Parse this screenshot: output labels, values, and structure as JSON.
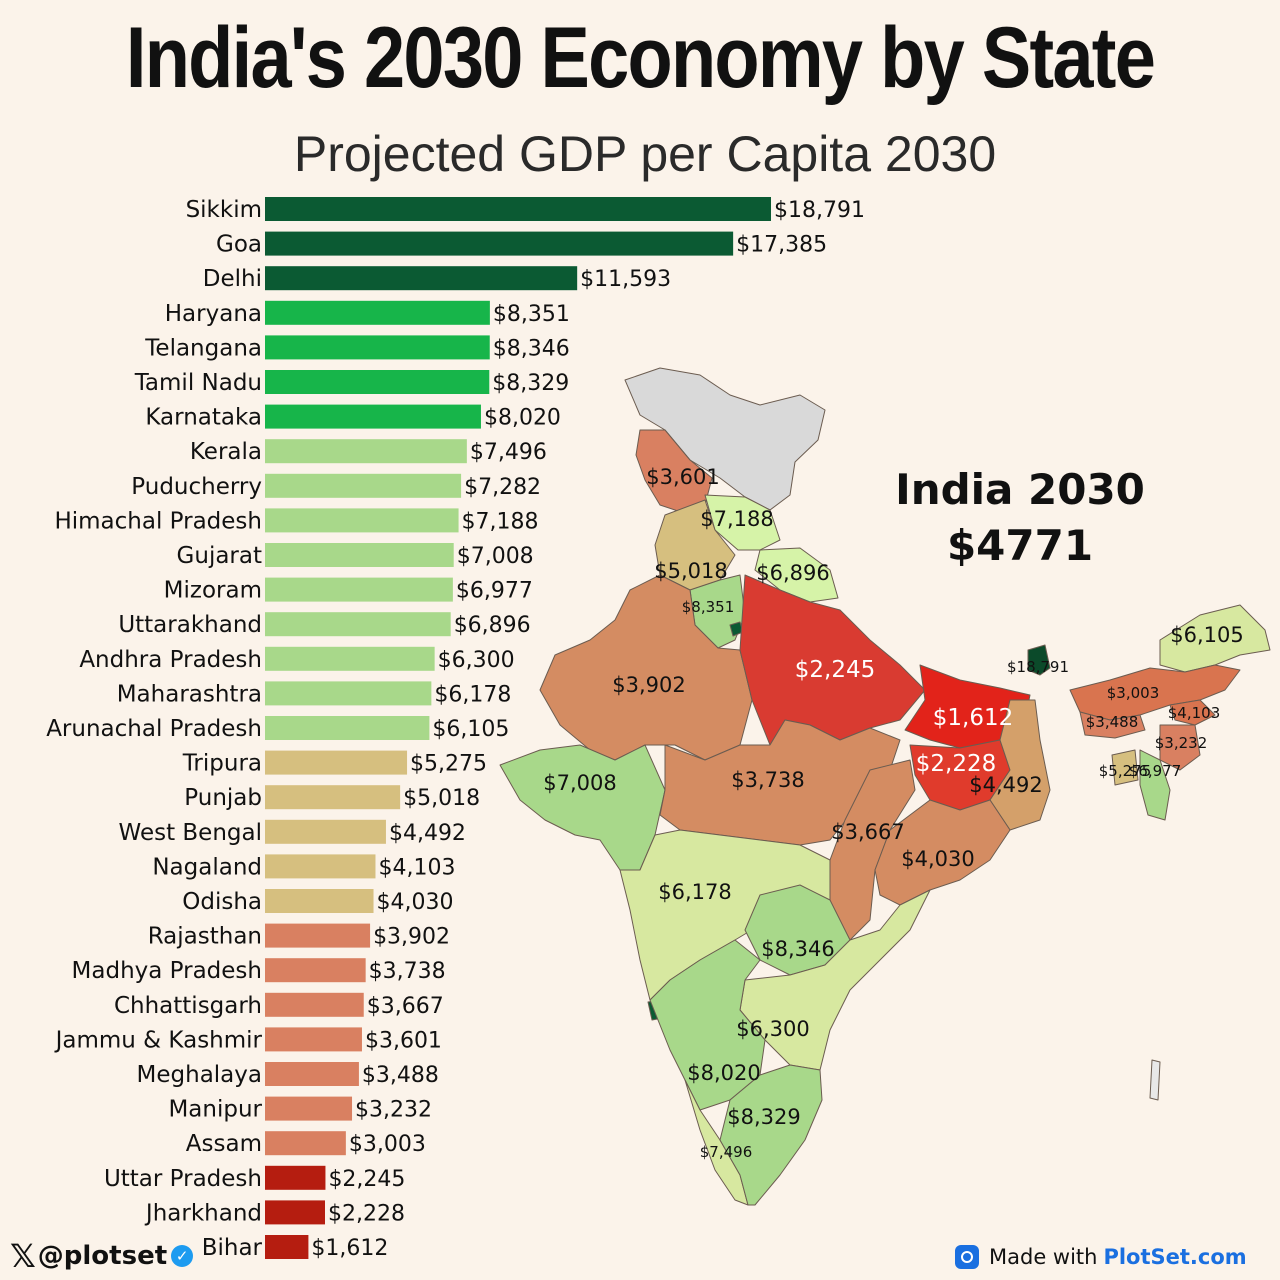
{
  "title": "India's 2030 Economy by State",
  "subtitle": "Projected GDP per Capita 2030",
  "india_total": {
    "line1": "India 2030",
    "line2": "$4771"
  },
  "footer": {
    "handle": "@plotset",
    "made_with": "Made with",
    "brand": "PlotSet.com",
    "icons": {
      "x": "x-logo-icon",
      "verified": "verified-check-icon",
      "plotset": "plotset-logo-icon"
    }
  },
  "colors": {
    "tier1": "#0b5a33",
    "tier2": "#17b54a",
    "tier3": "#a8d88a",
    "tier4": "#d6bf7f",
    "tier5": "#d98061",
    "tier6": "#b51d10",
    "background": "#fbf3ea"
  },
  "chart_data": {
    "type": "bar",
    "orientation": "horizontal",
    "title": "India's 2030 Economy by State",
    "subtitle": "Projected GDP per Capita 2030",
    "categories": [
      "Sikkim",
      "Goa",
      "Delhi",
      "Haryana",
      "Telangana",
      "Tamil Nadu",
      "Karnataka",
      "Kerala",
      "Puducherry",
      "Himachal Pradesh",
      "Gujarat",
      "Mizoram",
      "Uttarakhand",
      "Andhra Pradesh",
      "Maharashtra",
      "Arunachal Pradesh",
      "Tripura",
      "Punjab",
      "West Bengal",
      "Nagaland",
      "Odisha",
      "Rajasthan",
      "Madhya Pradesh",
      "Chhattisgarh",
      "Jammu & Kashmir",
      "Meghalaya",
      "Manipur",
      "Assam",
      "Uttar Pradesh",
      "Jharkhand",
      "Bihar"
    ],
    "values": [
      18791,
      17385,
      11593,
      8351,
      8346,
      8329,
      8020,
      7496,
      7282,
      7188,
      7008,
      6977,
      6896,
      6300,
      6178,
      6105,
      5275,
      5018,
      4492,
      4103,
      4030,
      3902,
      3738,
      3667,
      3601,
      3488,
      3232,
      3003,
      2245,
      2228,
      1612
    ],
    "value_labels": [
      "$18,791",
      "$17,385",
      "$11,593",
      "$8,351",
      "$8,346",
      "$8,329",
      "$8,020",
      "$7,496",
      "$7,282",
      "$7,188",
      "$7,008",
      "$6,977",
      "$6,896",
      "$6,300",
      "$6,178",
      "$6,105",
      "$5,275",
      "$5,018",
      "$4,492",
      "$4,103",
      "$4,030",
      "$3,902",
      "$3,738",
      "$3,667",
      "$3,601",
      "$3,488",
      "$3,232",
      "$3,003",
      "$2,245",
      "$2,228",
      "$1,612"
    ],
    "color_tiers": [
      1,
      1,
      1,
      2,
      2,
      2,
      2,
      3,
      3,
      3,
      3,
      3,
      3,
      3,
      3,
      3,
      4,
      4,
      4,
      4,
      4,
      5,
      5,
      5,
      5,
      5,
      5,
      5,
      6,
      6,
      6
    ],
    "xlim": [
      0,
      18791
    ],
    "grid": false,
    "legend": "none"
  },
  "map_labels": [
    {
      "name": "jammu-kashmir",
      "text": "$3,601",
      "size": "md"
    },
    {
      "name": "himachal-pradesh",
      "text": "$7,188",
      "size": "md"
    },
    {
      "name": "punjab",
      "text": "$5,018",
      "size": "md"
    },
    {
      "name": "uttarakhand",
      "text": "$6,896",
      "size": "md"
    },
    {
      "name": "haryana",
      "text": "$8,351",
      "size": "sm"
    },
    {
      "name": "uttar-pradesh",
      "text": "$2,245",
      "size": "lg-w"
    },
    {
      "name": "rajasthan",
      "text": "$3,902",
      "size": "lg"
    },
    {
      "name": "bihar",
      "text": "$1,612",
      "size": "lg-w"
    },
    {
      "name": "jharkhand",
      "text": "$2,228",
      "size": "md-w"
    },
    {
      "name": "west-bengal",
      "text": "$4,492",
      "size": "md"
    },
    {
      "name": "gujarat",
      "text": "$7,008",
      "size": "lg"
    },
    {
      "name": "madhya-pradesh",
      "text": "$3,738",
      "size": "lg"
    },
    {
      "name": "chhattisgarh",
      "text": "$3,667",
      "size": "md"
    },
    {
      "name": "odisha",
      "text": "$4,030",
      "size": "lg"
    },
    {
      "name": "maharashtra",
      "text": "$6,178",
      "size": "lg"
    },
    {
      "name": "telangana",
      "text": "$8,346",
      "size": "lg"
    },
    {
      "name": "andhra-pradesh",
      "text": "$6,300",
      "size": "lg"
    },
    {
      "name": "karnataka",
      "text": "$8,020",
      "size": "lg"
    },
    {
      "name": "tamil-nadu",
      "text": "$8,329",
      "size": "lg"
    },
    {
      "name": "kerala",
      "text": "$7,496",
      "size": "xs"
    },
    {
      "name": "arunachal-pradesh",
      "text": "$6,105",
      "size": "md"
    },
    {
      "name": "assam",
      "text": "$3,003",
      "size": "sm"
    },
    {
      "name": "meghalaya",
      "text": "$3,488",
      "size": "xs"
    },
    {
      "name": "nagaland",
      "text": "$4,103",
      "size": "xs"
    },
    {
      "name": "manipur",
      "text": "$3,232",
      "size": "xs"
    },
    {
      "name": "tripura",
      "text": "$5,275",
      "size": "xs"
    },
    {
      "name": "mizoram",
      "text": "$6,977",
      "size": "xs"
    },
    {
      "name": "sikkim",
      "text": "$18,791",
      "size": "xs"
    }
  ]
}
